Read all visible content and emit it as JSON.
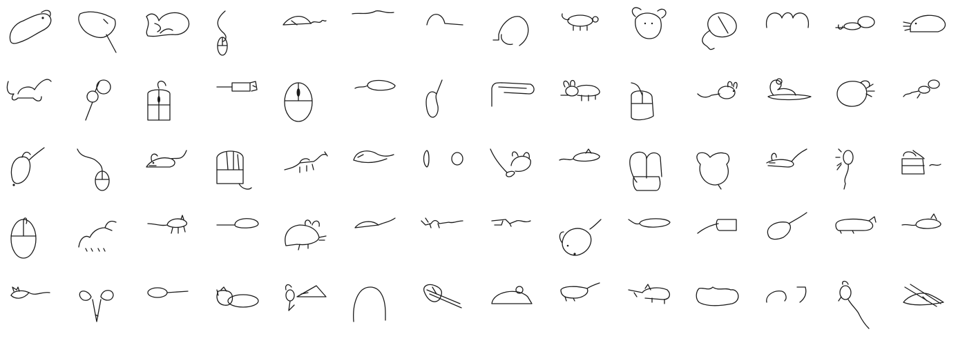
{
  "grid": {
    "rows": 5,
    "columns": 14,
    "subject": "mouse doodles",
    "sketches": [
      "mouse-0-0",
      "mouse-0-1",
      "mouse-0-2",
      "mouse-0-3",
      "mouse-0-4",
      "mouse-0-5",
      "mouse-0-6",
      "mouse-0-7",
      "mouse-0-8",
      "mouse-0-9",
      "mouse-0-10",
      "mouse-0-11",
      "mouse-0-12",
      "mouse-0-13",
      "mouse-1-0",
      "mouse-1-1",
      "mouse-1-2",
      "mouse-1-3",
      "mouse-1-4",
      "mouse-1-5",
      "mouse-1-6",
      "mouse-1-7",
      "mouse-1-8",
      "mouse-1-9",
      "mouse-1-10",
      "mouse-1-11",
      "mouse-1-12",
      "mouse-1-13",
      "mouse-2-0",
      "mouse-2-1",
      "mouse-2-2",
      "mouse-2-3",
      "mouse-2-4",
      "mouse-2-5",
      "mouse-2-6",
      "mouse-2-7",
      "mouse-2-8",
      "mouse-2-9",
      "mouse-2-10",
      "mouse-2-11",
      "mouse-2-12",
      "mouse-2-13",
      "mouse-3-0",
      "mouse-3-1",
      "mouse-3-2",
      "mouse-3-3",
      "mouse-3-4",
      "mouse-3-5",
      "mouse-3-6",
      "mouse-3-7",
      "mouse-3-8",
      "mouse-3-9",
      "mouse-3-10",
      "mouse-3-11",
      "mouse-3-12",
      "mouse-3-13",
      "mouse-4-0",
      "mouse-4-1",
      "mouse-4-2",
      "mouse-4-3",
      "mouse-4-4",
      "mouse-4-5",
      "mouse-4-6",
      "mouse-4-7",
      "mouse-4-8",
      "mouse-4-9",
      "mouse-4-10",
      "mouse-4-11",
      "mouse-4-12",
      "mouse-4-13"
    ]
  }
}
